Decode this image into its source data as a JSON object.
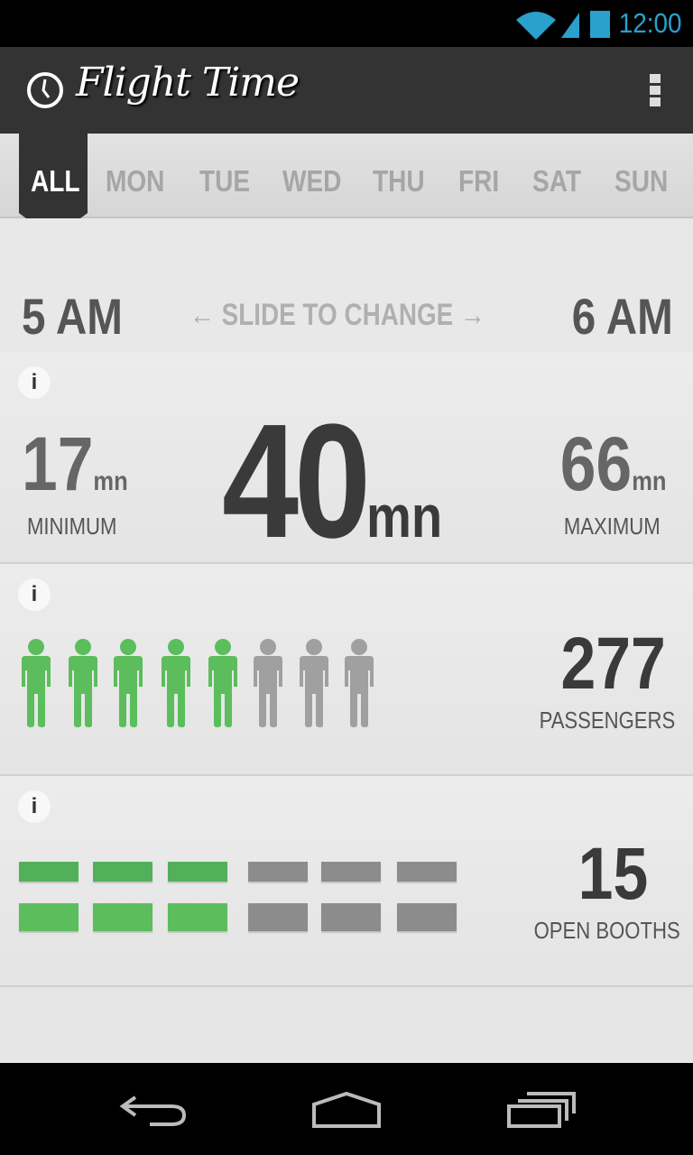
{
  "status_bar": {
    "time": "12:00",
    "icons": [
      "wifi-icon",
      "signal-icon",
      "battery-icon"
    ],
    "accent": "#2aa0cc"
  },
  "action_bar": {
    "title": "Flight Time",
    "icon": "clock-icon",
    "menu_icon": "overflow-menu-icon"
  },
  "tabs": [
    {
      "label": "ALL",
      "selected": true
    },
    {
      "label": "MON"
    },
    {
      "label": "TUE"
    },
    {
      "label": "WED"
    },
    {
      "label": "THU"
    },
    {
      "label": "FRI"
    },
    {
      "label": "SAT"
    },
    {
      "label": "SUN"
    }
  ],
  "time_range": {
    "start": "5 AM",
    "end": "6 AM",
    "hint": "SLIDE TO CHANGE"
  },
  "flight_time": {
    "info": "i",
    "minimum": "17",
    "minimum_label": "MINIMUM",
    "average": "40",
    "maximum": "66",
    "maximum_label": "MAXIMUM",
    "unit": "mn"
  },
  "passengers": {
    "info": "i",
    "count": "277",
    "label": "PASSENGERS",
    "figures_total": 8,
    "figures_filled": 5
  },
  "booths": {
    "info": "i",
    "count": "15",
    "label": "OPEN BOOTHS",
    "columns": 6,
    "rows": 2,
    "columns_filled": 3
  },
  "colors": {
    "filled": "#5cbd5c",
    "empty": "#8c8c8c"
  },
  "nav_bar": [
    "back-icon",
    "home-icon",
    "recent-apps-icon"
  ]
}
